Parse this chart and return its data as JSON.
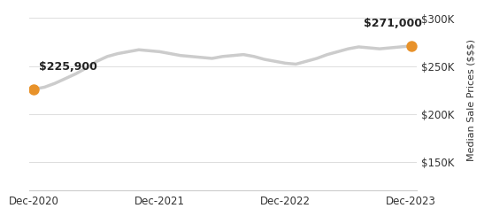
{
  "title": "",
  "ylabel": "Median Sale Prices ($$$)",
  "ylim": [
    120000,
    310000
  ],
  "yticks": [
    150000,
    200000,
    250000,
    300000
  ],
  "ytick_labels": [
    "$150K",
    "$200K",
    "$250K",
    "$300K"
  ],
  "xtick_labels": [
    "Dec-2020",
    "Dec-2021",
    "Dec-2022",
    "Dec-2023"
  ],
  "line_color": "#cccccc",
  "dot_color": "#e8922a",
  "dot_size": 80,
  "line_width": 2.5,
  "annotation_start": "$225,900",
  "annotation_end": "$271,000",
  "background_color": "#ffffff",
  "x_values": [
    0,
    1,
    2,
    3,
    4,
    5,
    6,
    7,
    8,
    9,
    10,
    11,
    12,
    13,
    14,
    15,
    16,
    17,
    18,
    19,
    20,
    21,
    22,
    23,
    24,
    25,
    26,
    27,
    28,
    29,
    30,
    31,
    32,
    33,
    34,
    35,
    36
  ],
  "y_values": [
    225900,
    228000,
    232000,
    237000,
    242000,
    248000,
    255000,
    260000,
    263000,
    265000,
    267000,
    266000,
    265000,
    263000,
    261000,
    260000,
    259000,
    258000,
    260000,
    261000,
    262000,
    260000,
    257000,
    255000,
    253000,
    252000,
    255000,
    258000,
    262000,
    265000,
    268000,
    270000,
    269000,
    268000,
    269000,
    270000,
    271000
  ]
}
